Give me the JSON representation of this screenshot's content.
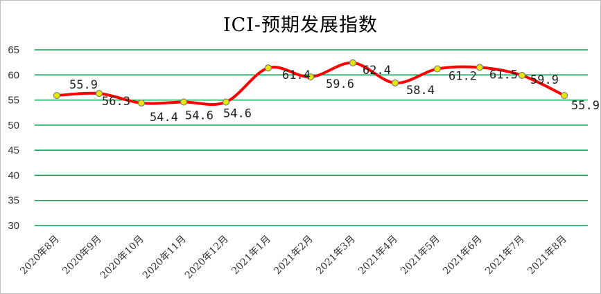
{
  "chart_data": {
    "type": "line",
    "title": "ICI-预期发展指数",
    "xlabel": "",
    "ylabel": "",
    "categories": [
      "2020年8月",
      "2020年9月",
      "2020年10月",
      "2020年11月",
      "2020年12月",
      "2021年1月",
      "2021年2月",
      "2021年3月",
      "2021年4月",
      "2021年5月",
      "2021年6月",
      "2021年7月",
      "2021年8月"
    ],
    "series": [
      {
        "values": [
          55.9,
          56.3,
          54.4,
          54.6,
          54.6,
          61.4,
          59.6,
          62.4,
          58.4,
          61.2,
          61.5,
          59.9,
          55.9
        ]
      }
    ],
    "data_labels": [
      "55.9",
      "56.3",
      "54.4",
      "54.6",
      "54.6",
      "61.4",
      "59.6",
      "62.4",
      "58.4",
      "61.2",
      "61.5",
      "59.9",
      "55.9"
    ],
    "ylim": [
      30,
      65
    ],
    "yticks": [
      30,
      35,
      40,
      45,
      50,
      55,
      60,
      65
    ],
    "grid": true,
    "legend": "none",
    "colors": {
      "line": "#ff0000",
      "grid": "#00a04a",
      "marker_fill": "#e6e600",
      "marker_stroke": "#7f7f7f"
    }
  }
}
